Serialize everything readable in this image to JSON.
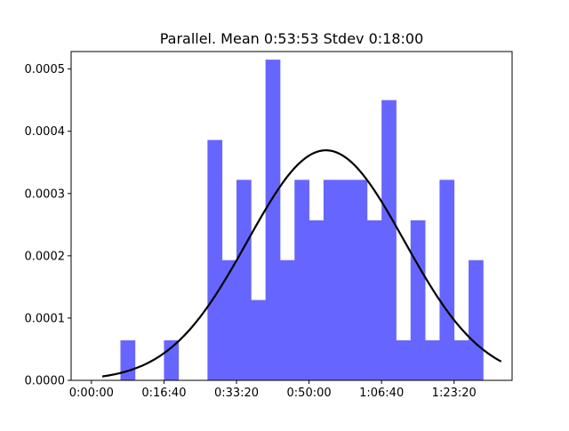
{
  "chart_data": {
    "type": "bar",
    "title": "Parallel. Mean 0:53:53 Stdev 0:18:00",
    "xlabel": "",
    "ylabel": "",
    "x_unit": "seconds",
    "xlim": [
      -280,
      5800
    ],
    "ylim": [
      0,
      0.000528
    ],
    "x_ticks": [
      {
        "value": 0,
        "label": "0:00:00"
      },
      {
        "value": 1000,
        "label": "0:16:40"
      },
      {
        "value": 2000,
        "label": "0:33:20"
      },
      {
        "value": 3000,
        "label": "0:50:00"
      },
      {
        "value": 4000,
        "label": "1:06:40"
      },
      {
        "value": 5000,
        "label": "1:23:20"
      }
    ],
    "y_ticks": [
      {
        "value": 0,
        "label": "0.0000"
      },
      {
        "value": 0.0001,
        "label": "0.0001"
      },
      {
        "value": 0.0002,
        "label": "0.0002"
      },
      {
        "value": 0.0003,
        "label": "0.0003"
      },
      {
        "value": 0.0004,
        "label": "0.0004"
      },
      {
        "value": 0.0005,
        "label": "0.0005"
      }
    ],
    "histogram": {
      "color": "#6666ff",
      "bin_edges": [
        400,
        600,
        800,
        1000,
        1200,
        1400,
        1600,
        1800,
        2000,
        2200,
        2400,
        2600,
        2800,
        3000,
        3200,
        3400,
        3600,
        3800,
        4000,
        4200,
        4400,
        4600,
        4800,
        5000,
        5200,
        5400
      ],
      "values": [
        6.43e-05,
        0,
        0,
        6.43e-05,
        0,
        0,
        0.000386,
        0.000193,
        0.000322,
        0.000129,
        0.000515,
        0.000193,
        0.000322,
        0.000257,
        0.000322,
        0.000322,
        0.000322,
        0.000257,
        0.00045,
        6.43e-05,
        0.000257,
        6.43e-05,
        0.000322,
        6.43e-05,
        0.000193
      ]
    },
    "curve": {
      "type": "normal-pdf",
      "mean_seconds": 3233,
      "stdev_seconds": 1080,
      "x_range": [
        150,
        5650
      ],
      "color": "#000000"
    },
    "grid": false,
    "legend": "none"
  }
}
